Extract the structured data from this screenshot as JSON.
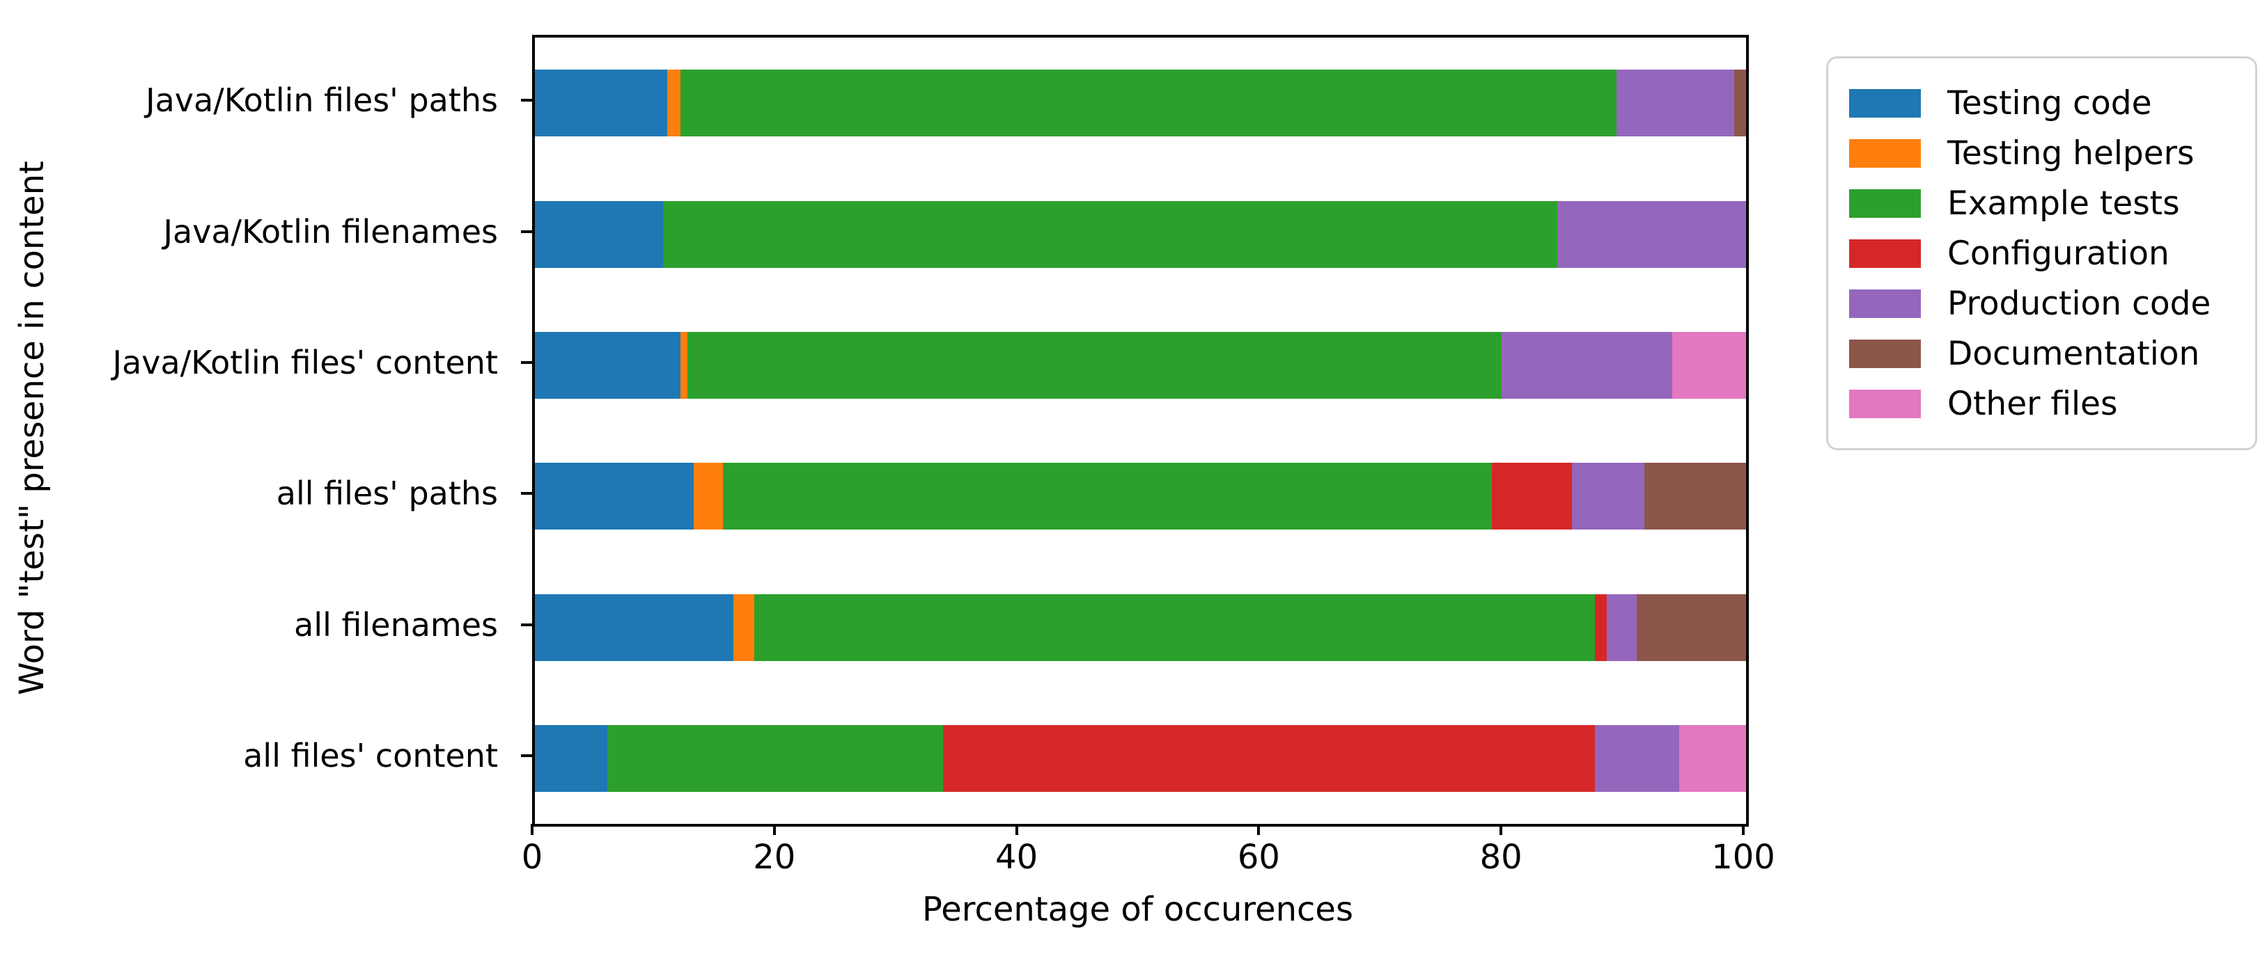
{
  "chart_data": {
    "type": "bar",
    "variant": "horizontal-stacked",
    "title": "",
    "xlabel": "Percentage of occurences",
    "ylabel": "Word \"test\" presence in content",
    "xlim": [
      0,
      100
    ],
    "xticks": [
      0,
      20,
      40,
      60,
      80,
      100
    ],
    "grid": "off",
    "legend_position": "outside-right-top",
    "categories": [
      "Java/Kotlin files' paths",
      "Java/Kotlin filenames",
      "Java/Kotlin files' content",
      "all files' paths",
      "all filenames",
      "all files' content"
    ],
    "series": [
      {
        "name": "Testing code",
        "color": "#1f77b4",
        "values": [
          10.9,
          10.6,
          12.0,
          13.1,
          16.4,
          6.0
        ]
      },
      {
        "name": "Testing helpers",
        "color": "#ff7f0e",
        "values": [
          1.1,
          0,
          0.6,
          2.4,
          1.7,
          0
        ]
      },
      {
        "name": "Example tests",
        "color": "#2ca02c",
        "values": [
          77.3,
          73.8,
          67.2,
          63.5,
          69.4,
          27.7
        ]
      },
      {
        "name": "Configuration",
        "color": "#d62728",
        "values": [
          0,
          0,
          0,
          6.6,
          1.0,
          53.8
        ]
      },
      {
        "name": "Production code",
        "color": "#9467bd",
        "values": [
          9.7,
          15.6,
          14.1,
          6.0,
          2.5,
          7.0
        ]
      },
      {
        "name": "Documentation",
        "color": "#8c564b",
        "values": [
          1.0,
          0,
          0,
          8.4,
          9.0,
          0
        ]
      },
      {
        "name": "Other files",
        "color": "#e377c2",
        "values": [
          0,
          0,
          6.1,
          0,
          0,
          5.5
        ]
      }
    ]
  },
  "axis": {
    "spine_color": "#000000",
    "tick_color": "#000000"
  }
}
